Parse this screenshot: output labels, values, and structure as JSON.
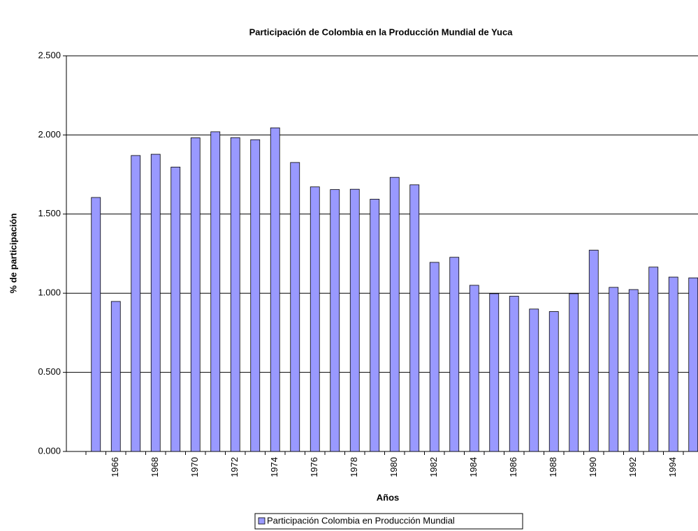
{
  "chart_data": {
    "type": "bar",
    "title": "Participación de Colombia en la Producción Mundial de Yuca",
    "x_label": "Años",
    "y_label": "% de participación",
    "categories": [
      null,
      "1966",
      null,
      "1968",
      null,
      "1970",
      null,
      "1972",
      null,
      "1974",
      null,
      "1976",
      null,
      "1978",
      null,
      "1980",
      null,
      "1982",
      null,
      "1984",
      null,
      "1986",
      null,
      "1988",
      null,
      "1990",
      null,
      "1992",
      null,
      "1994",
      null
    ],
    "series": [
      {
        "name": "Participación Colombia en Producción Mundial",
        "color": "#9999ff",
        "values": [
          1.605,
          0.948,
          1.87,
          1.878,
          1.797,
          1.982,
          2.02,
          1.983,
          1.97,
          2.045,
          1.826,
          1.672,
          1.655,
          1.657,
          1.594,
          1.732,
          1.685,
          1.195,
          1.227,
          1.05,
          0.997,
          0.981,
          0.9,
          0.884,
          0.997,
          1.272,
          1.037,
          1.023,
          1.165,
          1.102,
          1.097
        ]
      }
    ],
    "ylim": [
      0,
      2.5
    ],
    "yticks": [
      {
        "value": 0,
        "label": "0.000"
      },
      {
        "value": 0.5,
        "label": "0.500"
      },
      {
        "value": 1,
        "label": "1.000"
      },
      {
        "value": 1.5,
        "label": "1.500"
      },
      {
        "value": 2,
        "label": "2.000"
      },
      {
        "value": 2.5,
        "label": "2.500"
      }
    ],
    "grid": true,
    "legend": "bottom"
  }
}
